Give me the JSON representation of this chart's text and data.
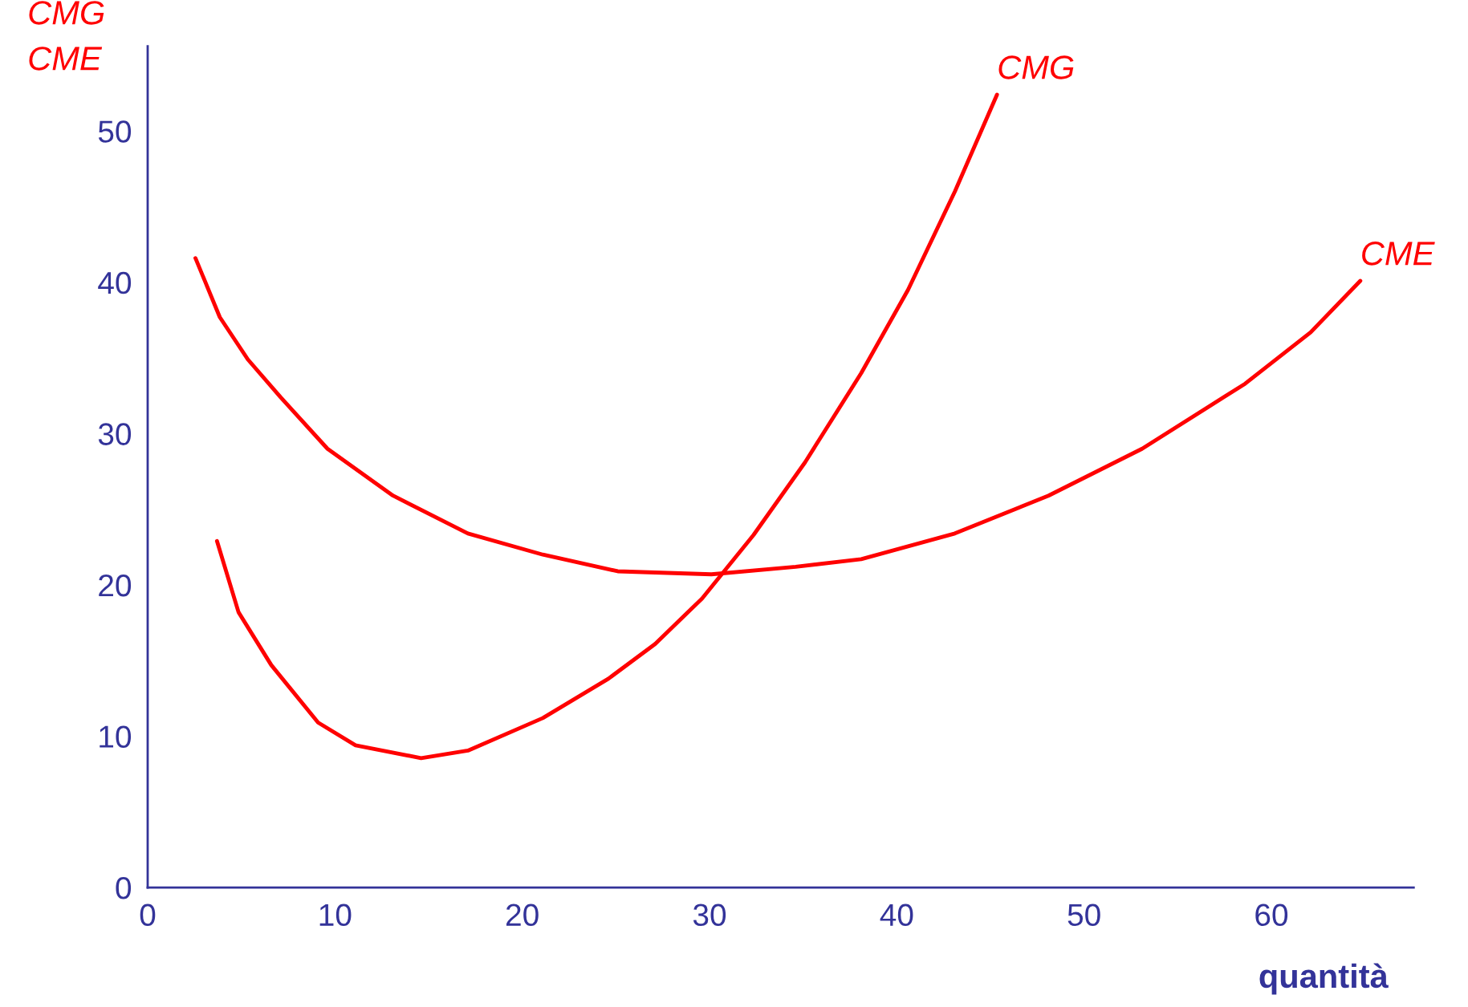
{
  "chart_data": {
    "type": "line",
    "xlabel": "quantità",
    "ylabel": "CMG\nCME",
    "xlim": [
      0,
      67.6
    ],
    "ylim": [
      0,
      55.6
    ],
    "xticks": [
      0,
      10,
      20,
      30,
      40,
      50,
      60
    ],
    "yticks": [
      0,
      10,
      20,
      30,
      40,
      50
    ],
    "grid": false,
    "legend": false,
    "marker": "none",
    "line_style": "solid",
    "series": [
      {
        "name": "CMG",
        "color": "#ff0000",
        "x": [
          3.7,
          4.85,
          6.6,
          9.1,
          11.1,
          14.6,
          17.1,
          21.1,
          24.6,
          27.1,
          29.6,
          32.35,
          35.1,
          38.1,
          40.6,
          43.1,
          45.35
        ],
        "values": [
          22.9,
          18.2,
          14.7,
          10.9,
          9.4,
          8.55,
          9.05,
          11.2,
          13.8,
          16.1,
          19.1,
          23.3,
          28.1,
          34.0,
          39.5,
          46.0,
          52.4
        ]
      },
      {
        "name": "CME",
        "color": "#ff0000",
        "x": [
          2.55,
          3.85,
          5.35,
          7.1,
          9.6,
          13.1,
          17.1,
          21.1,
          25.1,
          30.1,
          34.6,
          38.1,
          43.1,
          48.1,
          53.1,
          58.6,
          62.1,
          64.75
        ],
        "values": [
          41.6,
          37.7,
          34.9,
          32.4,
          29.0,
          25.9,
          23.4,
          22.0,
          20.9,
          20.7,
          21.2,
          21.7,
          23.4,
          25.9,
          29.0,
          33.3,
          36.7,
          40.1
        ]
      }
    ]
  }
}
